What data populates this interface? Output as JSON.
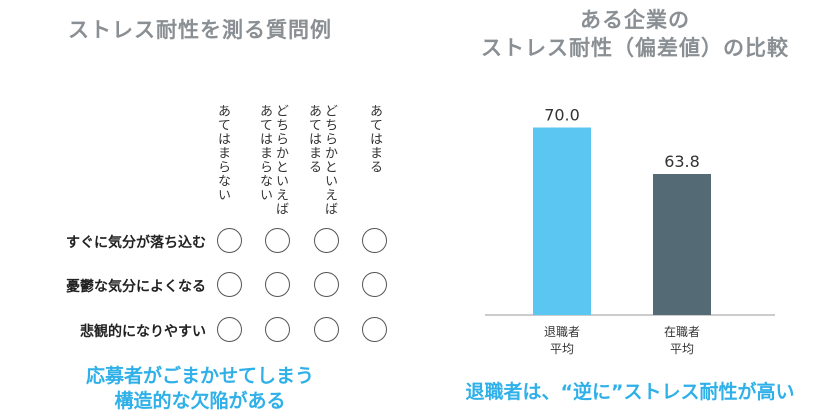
{
  "left": {
    "title": "ストレス耐性を測る質問例",
    "columns": [
      {
        "lines": [
          "あてはまらない"
        ]
      },
      {
        "lines": [
          "どちらかといえば",
          "あてはまらない"
        ]
      },
      {
        "lines": [
          "どちらかといえば",
          "あてはまる"
        ]
      },
      {
        "lines": [
          "あてはまる"
        ]
      }
    ],
    "questions": [
      "すぐに気分が落ち込む",
      "憂鬱な気分によくなる",
      "悲観的になりやすい"
    ],
    "caption_line1": "応募者がごまかせてしまう",
    "caption_line2": "構造的な欠陥がある"
  },
  "right": {
    "title_line1": "ある企業の",
    "title_line2": "ストレス耐性（偏差値）の比較",
    "caption": "退職者は、“逆に”ストレス耐性が高い"
  },
  "colors": {
    "bar1": "#5bc6f2",
    "bar2": "#546a74",
    "caption": "#2fb0e8"
  },
  "chart_data": {
    "type": "bar",
    "categories": [
      [
        "退職者",
        "平均"
      ],
      [
        "在職者",
        "平均"
      ]
    ],
    "values": [
      70.0,
      63.8
    ],
    "value_labels": [
      "70.0",
      "63.8"
    ],
    "ylim": [
      45,
      75
    ],
    "grid": false,
    "legend": "none"
  }
}
